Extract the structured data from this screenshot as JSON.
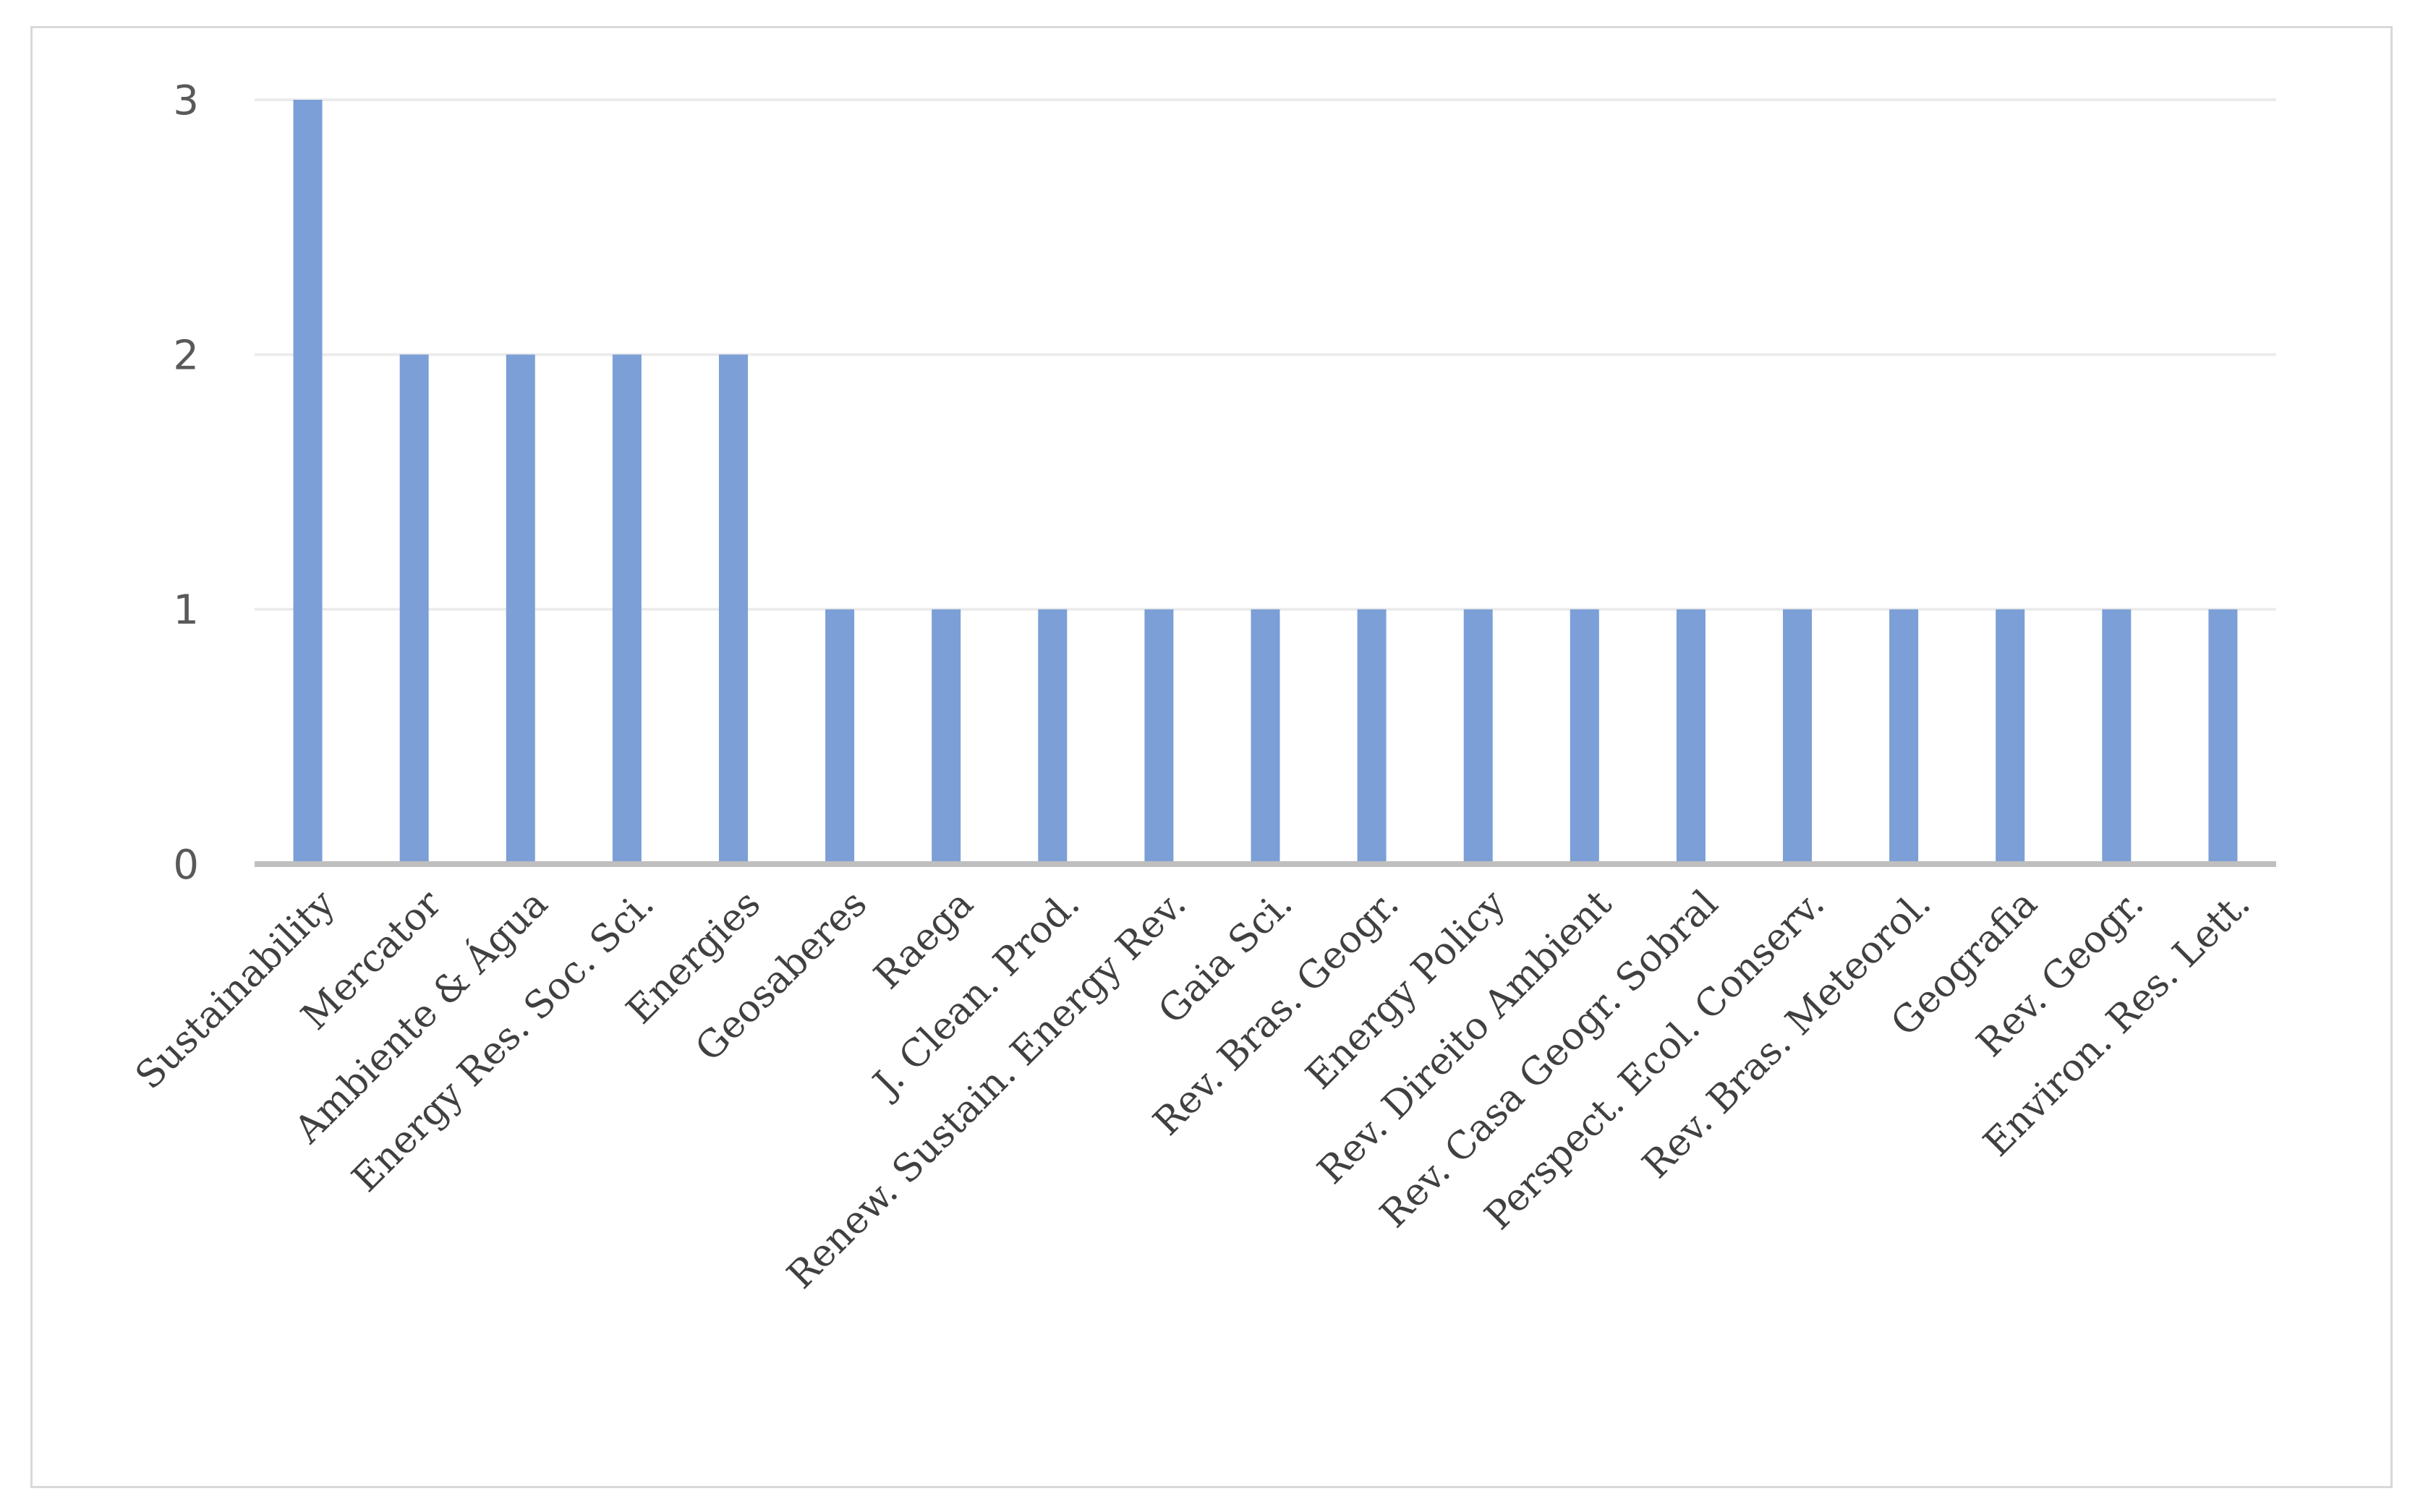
{
  "chart_data": {
    "type": "bar",
    "title": "",
    "xlabel": "",
    "ylabel": "",
    "ylim": [
      0,
      3
    ],
    "yticks": [
      0,
      1,
      2,
      3
    ],
    "grid": true,
    "legend": "none",
    "categories": [
      "Sustainability",
      "Mercator",
      "Ambiente & Água",
      "Energy Res. Soc. Sci.",
      "Energies",
      "Geosaberes",
      "Raega",
      "J. Clean. Prod.",
      "Renew. Sustain. Energy Rev.",
      "Gaia Sci.",
      "Rev. Bras. Geogr.",
      "Energy Policy",
      "Rev. Direito Ambient",
      "Rev. Casa Geogr. Sobral",
      "Perspect. Ecol. Conserv.",
      "Rev. Bras. Meteorol.",
      "Geografia",
      "Rev. Geogr.",
      "Environ. Res. Lett."
    ],
    "values": [
      3,
      2,
      2,
      2,
      2,
      1,
      1,
      1,
      1,
      1,
      1,
      1,
      1,
      1,
      1,
      1,
      1,
      1,
      1
    ],
    "colors": {
      "bar": "#7b9fd6",
      "grid": "#ececec",
      "axis": "#bfbfbf",
      "tick_text": "#595959",
      "label_text": "#404040"
    }
  }
}
